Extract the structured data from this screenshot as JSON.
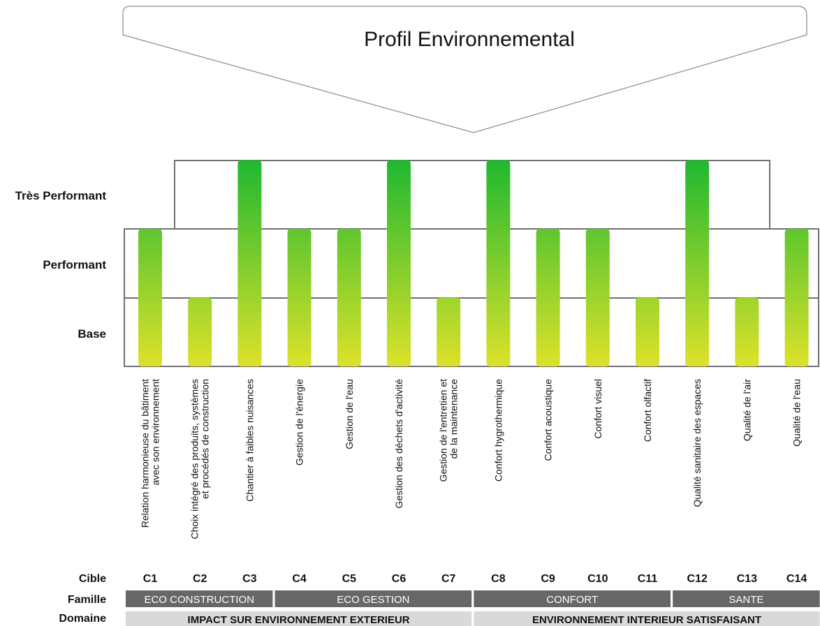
{
  "chart_data": {
    "type": "bar",
    "title": "Profil Environnemental",
    "levels": [
      "Base",
      "Performant",
      "Très Performant"
    ],
    "level_labels": {
      "tres": "Très Performant",
      "perf": "Performant",
      "base": "Base"
    },
    "targets": [
      {
        "code": "C1",
        "label": [
          "Relation harmonieuse du bâtiment",
          "avec son environnement"
        ],
        "level": 2
      },
      {
        "code": "C2",
        "label": [
          "Choix intégré des produits, systèmes",
          "et procédés de construction"
        ],
        "level": 1
      },
      {
        "code": "C3",
        "label": [
          "Chantier à faibles nuisances"
        ],
        "level": 3
      },
      {
        "code": "C4",
        "label": [
          "Gestion de l'énergie"
        ],
        "level": 2
      },
      {
        "code": "C5",
        "label": [
          "Gestion de l'eau"
        ],
        "level": 2
      },
      {
        "code": "C6",
        "label": [
          "Gestion des déchets d'activité"
        ],
        "level": 3
      },
      {
        "code": "C7",
        "label": [
          "Gestion de l'entretien et",
          "de la maintenance"
        ],
        "level": 1
      },
      {
        "code": "C8",
        "label": [
          "Confort hygrothermique"
        ],
        "level": 3
      },
      {
        "code": "C9",
        "label": [
          "Confort acoustique"
        ],
        "level": 2
      },
      {
        "code": "C10",
        "label": [
          "Confort visuel"
        ],
        "level": 2
      },
      {
        "code": "C11",
        "label": [
          "Confort olfactif"
        ],
        "level": 1
      },
      {
        "code": "C12",
        "label": [
          "Qualité sanitaire des espaces"
        ],
        "level": 3
      },
      {
        "code": "C13",
        "label": [
          "Qualité de l'air"
        ],
        "level": 1
      },
      {
        "code": "C14",
        "label": [
          "Qualité de l'eau"
        ],
        "level": 2
      }
    ],
    "row_labels": {
      "cible": "Cible",
      "famille": "Famille",
      "domaine": "Domaine"
    },
    "families": [
      {
        "name": "ECO CONSTRUCTION",
        "from": 1,
        "to": 3
      },
      {
        "name": "ECO GESTION",
        "from": 4,
        "to": 7
      },
      {
        "name": "CONFORT",
        "from": 8,
        "to": 11
      },
      {
        "name": "SANTE",
        "from": 12,
        "to": 14
      }
    ],
    "domains": [
      {
        "name": "IMPACT SUR ENVIRONNEMENT EXTERIEUR",
        "from": 1,
        "to": 7
      },
      {
        "name": "ENVIRONNEMENT INTERIEUR SATISFAISANT",
        "from": 8,
        "to": 14
      }
    ],
    "colors": {
      "bar_top": "#1fb830",
      "bar_bottom": "#dde22a",
      "box": "#707070",
      "family_bg": "#676767",
      "domain_bg": "#d9d9d9"
    }
  }
}
